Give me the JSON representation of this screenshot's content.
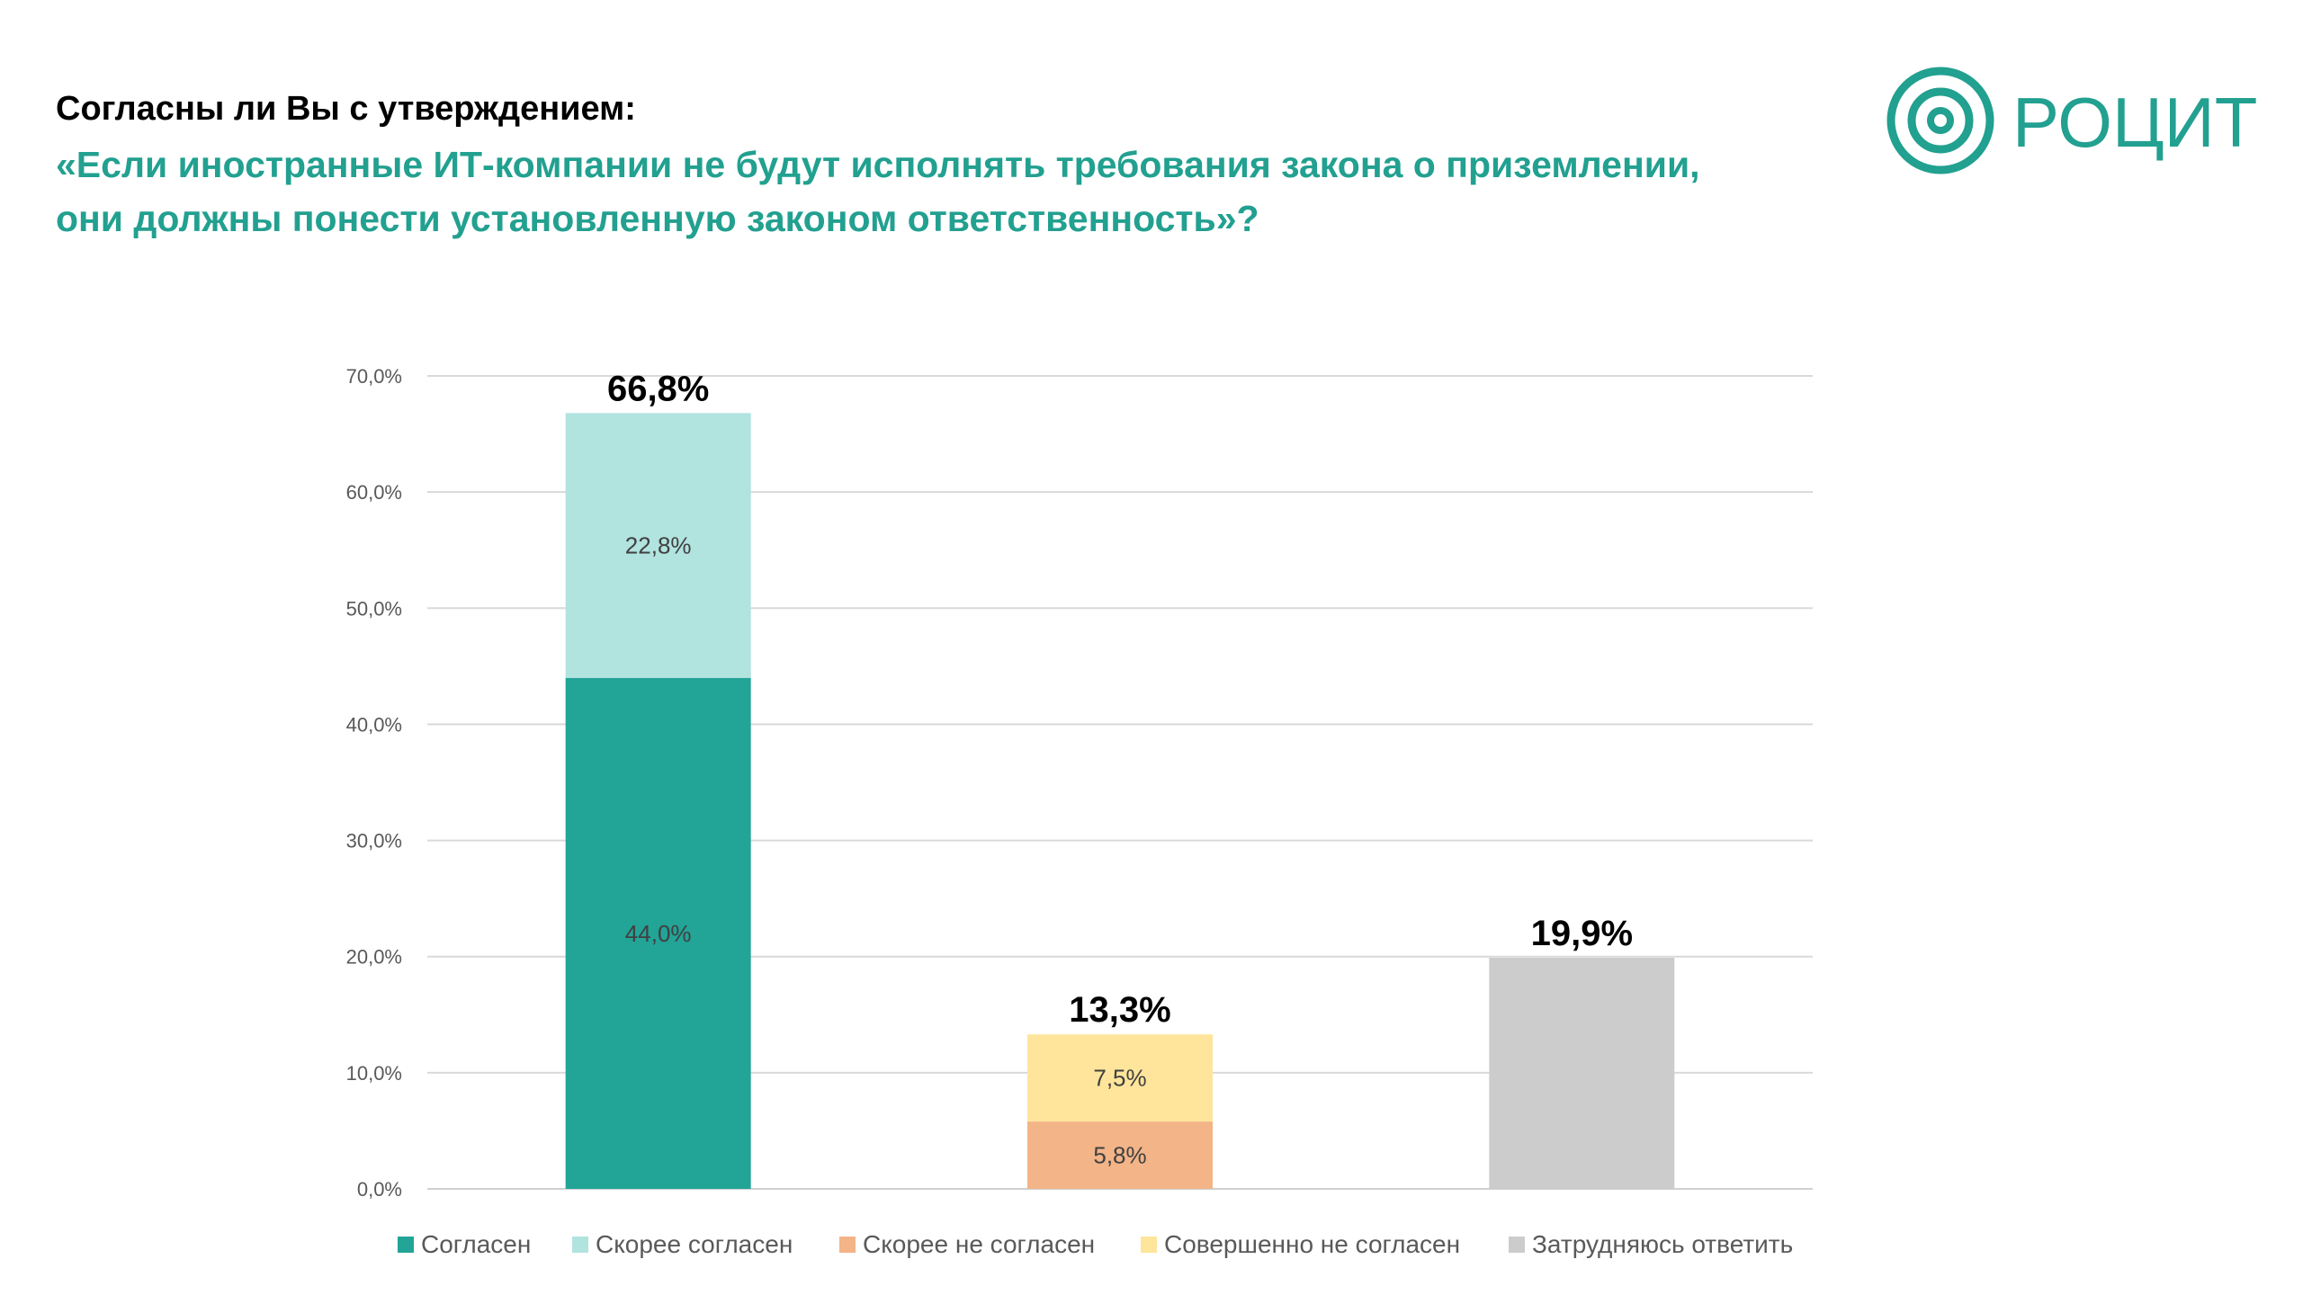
{
  "heading": {
    "question": "Согласны ли Вы с утверждением:",
    "quote_line1": "«Если иностранные ИТ-компании не будут исполнять требования закона о   приземлении,",
    "quote_line2": "они должны понести установленную законом ответственность»?"
  },
  "logo": {
    "text": "РОЦИТ",
    "color": "#22a090",
    "icon": "concentric-circles-icon"
  },
  "chart_data": {
    "type": "bar",
    "stacked": true,
    "ylim": [
      0,
      70
    ],
    "yticks": [
      "0,0%",
      "10,0%",
      "20,0%",
      "30,0%",
      "40,0%",
      "50,0%",
      "60,0%",
      "70,0%"
    ],
    "grid": true,
    "legend_position": "bottom",
    "bars": [
      {
        "total": 66.8,
        "total_label": "66,8%",
        "segments": [
          {
            "series": "Согласен",
            "value": 44.0,
            "label": "44,0%"
          },
          {
            "series": "Скорее согласен",
            "value": 22.8,
            "label": "22,8%"
          }
        ]
      },
      {
        "total": 13.3,
        "total_label": "13,3%",
        "segments": [
          {
            "series": "Скорее не согласен",
            "value": 5.8,
            "label": "5,8%"
          },
          {
            "series": "Совершенно не согласен",
            "value": 7.5,
            "label": "7,5%"
          }
        ]
      },
      {
        "total": 19.9,
        "total_label": "19,9%",
        "segments": [
          {
            "series": "Затрудняюсь ответить",
            "value": 19.9,
            "label": ""
          }
        ]
      }
    ],
    "series": [
      {
        "name": "Согласен",
        "color": "#22a497"
      },
      {
        "name": "Скорее согласен",
        "color": "#b1e3df"
      },
      {
        "name": "Скорее не согласен",
        "color": "#f3b488"
      },
      {
        "name": "Совершенно не согласен",
        "color": "#fee59b"
      },
      {
        "name": "Затрудняюсь ответить",
        "color": "#cccccc"
      }
    ]
  }
}
